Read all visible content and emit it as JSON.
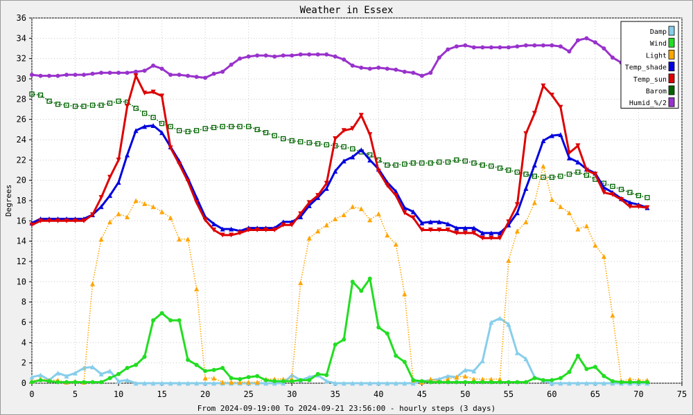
{
  "chart_data": {
    "type": "line",
    "title": "Weather in Essex",
    "xlabel": "From 2024-09-19:00 To 2024-09-21 23:56:00 - hourly steps (3 days)",
    "ylabel": "Degrees",
    "xlim": [
      0,
      75
    ],
    "ylim": [
      0,
      36
    ],
    "xticks": [
      0,
      5,
      10,
      15,
      20,
      25,
      30,
      35,
      40,
      45,
      50,
      55,
      60,
      65,
      70,
      75
    ],
    "yticks": [
      0,
      2,
      4,
      6,
      8,
      10,
      12,
      14,
      16,
      18,
      20,
      22,
      24,
      26,
      28,
      30,
      32,
      34,
      36
    ],
    "grid": true,
    "legend_position": "top-right",
    "series": [
      {
        "name": "Damp",
        "color": "#87ceeb",
        "style": "solid",
        "marker": "triangle-up",
        "values": [
          0.6,
          0.8,
          0.3,
          1.0,
          0.7,
          1.0,
          1.5,
          1.6,
          0.9,
          1.2,
          0.2,
          0.3,
          0,
          0,
          0,
          0,
          0,
          0,
          0,
          0,
          0,
          0,
          0,
          0,
          0,
          0,
          0,
          0,
          0,
          0,
          0.8,
          0.3,
          0.6,
          0.8,
          0.2,
          0,
          0,
          0,
          0,
          0,
          0,
          0,
          0,
          0,
          0,
          0.2,
          0.3,
          0.4,
          0.7,
          0.6,
          1.3,
          1.2,
          2.2,
          6.0,
          6.4,
          5.8,
          3.0,
          2.4,
          0.6,
          0.3,
          0,
          0,
          0,
          0,
          0,
          0,
          0,
          0,
          0,
          0,
          0,
          0
        ]
      },
      {
        "name": "Wind",
        "color": "#22dd22",
        "style": "solid",
        "marker": "circle",
        "values": [
          0.1,
          0.3,
          0.2,
          0.1,
          0.1,
          0.1,
          0.1,
          0.1,
          0.1,
          0.5,
          0.9,
          1.5,
          1.8,
          2.6,
          6.2,
          6.9,
          6.2,
          6.2,
          2.3,
          1.8,
          1.2,
          1.3,
          1.5,
          0.5,
          0.4,
          0.6,
          0.7,
          0.3,
          0.2,
          0.2,
          0.2,
          0.3,
          0.3,
          0.9,
          0.8,
          3.8,
          4.3,
          10.0,
          9.1,
          10.3,
          5.5,
          4.9,
          2.7,
          2.1,
          0.3,
          0.2,
          0.1,
          0.1,
          0.1,
          0.1,
          0.1,
          0.1,
          0.1,
          0.1,
          0.1,
          0.1,
          0.1,
          0.1,
          0.5,
          0.3,
          0.3,
          0.5,
          1.1,
          2.7,
          1.4,
          1.6,
          0.7,
          0.2,
          0.1,
          0.1,
          0.1,
          0.1
        ]
      },
      {
        "name": "Light",
        "color": "#ffa500",
        "style": "dotted",
        "marker": "triangle-up",
        "values": [
          0.2,
          0.4,
          0.3,
          0.3,
          0.1,
          0.2,
          0.1,
          9.8,
          14.2,
          15.9,
          16.7,
          16.4,
          18.0,
          17.7,
          17.4,
          16.9,
          16.3,
          14.2,
          14.2,
          9.3,
          0.5,
          0.5,
          0.1,
          0.1,
          0.1,
          0.1,
          0.1,
          0.4,
          0.4,
          0.4,
          0.4,
          9.9,
          14.3,
          15.0,
          15.6,
          16.2,
          16.6,
          17.4,
          17.2,
          16.1,
          16.7,
          14.6,
          13.7,
          8.8,
          0.3,
          0.1,
          0.4,
          0.2,
          0.4,
          0.6,
          0.7,
          0.4,
          0.4,
          0.4,
          0.4,
          12.1,
          15.0,
          15.9,
          17.8,
          21.4,
          18.1,
          17.4,
          16.8,
          15.2,
          15.5,
          13.6,
          12.5,
          6.7,
          0.2,
          0.4,
          0.3,
          0.3
        ]
      },
      {
        "name": "Temp_shade",
        "color": "#0000dd",
        "style": "solid",
        "marker": "triangle-up",
        "values": [
          15.8,
          16.2,
          16.2,
          16.2,
          16.2,
          16.2,
          16.2,
          16.6,
          17.4,
          18.5,
          19.8,
          22.5,
          24.9,
          25.3,
          25.4,
          24.7,
          23.3,
          21.9,
          20.2,
          18.3,
          16.4,
          15.7,
          15.2,
          15.2,
          15.0,
          15.3,
          15.3,
          15.3,
          15.3,
          15.9,
          15.9,
          16.4,
          17.5,
          18.3,
          19.2,
          20.9,
          21.9,
          22.3,
          23.0,
          22.0,
          21.1,
          19.8,
          18.9,
          17.3,
          16.9,
          15.8,
          15.9,
          15.9,
          15.7,
          15.3,
          15.3,
          15.3,
          14.8,
          14.8,
          14.8,
          15.6,
          16.8,
          19.2,
          21.5,
          23.9,
          24.4,
          24.5,
          22.2,
          21.8,
          21.1,
          20.7,
          19.3,
          18.8,
          18.2,
          17.8,
          17.6,
          17.3
        ]
      },
      {
        "name": "Temp_sun",
        "color": "#dd0000",
        "style": "solid",
        "marker": "triangle-down",
        "values": [
          15.6,
          16.0,
          16.0,
          16.0,
          16.0,
          16.0,
          16.0,
          16.6,
          18.3,
          20.3,
          22.0,
          27.3,
          30.3,
          28.6,
          28.7,
          28.3,
          23.2,
          21.6,
          19.9,
          17.8,
          16.1,
          15.1,
          14.6,
          14.6,
          14.8,
          15.1,
          15.1,
          15.1,
          15.1,
          15.6,
          15.6,
          16.7,
          17.8,
          18.5,
          19.7,
          24.1,
          24.9,
          25.1,
          26.4,
          24.5,
          20.9,
          19.5,
          18.5,
          16.8,
          16.3,
          15.1,
          15.1,
          15.1,
          15.1,
          14.8,
          14.8,
          14.8,
          14.3,
          14.3,
          14.3,
          15.9,
          17.6,
          24.6,
          26.6,
          29.3,
          28.4,
          27.2,
          22.7,
          23.4,
          21.0,
          20.6,
          18.8,
          18.6,
          18.1,
          17.4,
          17.4,
          17.3
        ]
      },
      {
        "name": "Barom",
        "color": "#006400",
        "style": "dotted",
        "marker": "square",
        "values": [
          28.5,
          28.4,
          27.8,
          27.5,
          27.4,
          27.3,
          27.3,
          27.4,
          27.4,
          27.6,
          27.8,
          27.7,
          27.1,
          26.6,
          26.2,
          25.6,
          25.3,
          24.9,
          24.8,
          24.9,
          25.1,
          25.2,
          25.3,
          25.3,
          25.3,
          25.3,
          25.0,
          24.7,
          24.4,
          24.1,
          23.9,
          23.8,
          23.7,
          23.6,
          23.5,
          23.4,
          23.3,
          23.1,
          22.8,
          22.5,
          22.0,
          21.5,
          21.5,
          21.6,
          21.7,
          21.7,
          21.7,
          21.8,
          21.8,
          22.0,
          21.9,
          21.7,
          21.5,
          21.4,
          21.2,
          21.0,
          20.8,
          20.6,
          20.4,
          20.3,
          20.3,
          20.4,
          20.6,
          20.8,
          20.5,
          20.1,
          19.7,
          19.4,
          19.1,
          18.8,
          18.5,
          18.3
        ]
      },
      {
        "name": "Humid_%/2",
        "color": "#9932cc",
        "style": "solid",
        "marker": "circle",
        "values": [
          30.4,
          30.3,
          30.3,
          30.3,
          30.4,
          30.4,
          30.4,
          30.5,
          30.6,
          30.6,
          30.6,
          30.6,
          30.7,
          30.8,
          31.3,
          31.0,
          30.4,
          30.4,
          30.3,
          30.2,
          30.1,
          30.5,
          30.7,
          31.4,
          32.0,
          32.2,
          32.3,
          32.3,
          32.2,
          32.3,
          32.3,
          32.4,
          32.4,
          32.4,
          32.4,
          32.2,
          31.9,
          31.3,
          31.1,
          31.0,
          31.1,
          31.0,
          30.9,
          30.7,
          30.6,
          30.3,
          30.6,
          32.1,
          32.9,
          33.2,
          33.3,
          33.1,
          33.1,
          33.1,
          33.1,
          33.1,
          33.2,
          33.3,
          33.3,
          33.3,
          33.3,
          33.2,
          32.7,
          33.8,
          34.0,
          33.6,
          33.0,
          32.1,
          31.6,
          31.4,
          31.5,
          31.7
        ]
      }
    ]
  }
}
